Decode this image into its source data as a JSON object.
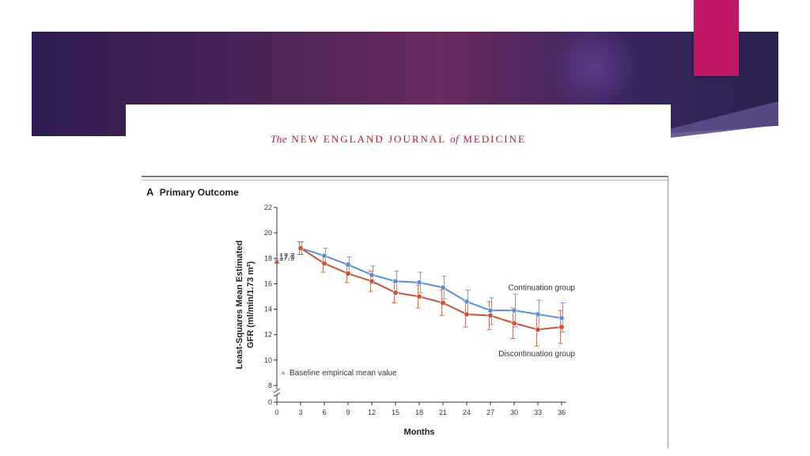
{
  "header": {
    "journal_prefix": "The",
    "journal_main": "NEW ENGLAND JOURNAL",
    "journal_of": "of",
    "journal_end": "MEDICINE"
  },
  "colors": {
    "accent": "#c21666",
    "banner": "#4a2458",
    "journal": "#b0202a",
    "continuation": "#5b8fd1",
    "discontinuation": "#c8533a"
  },
  "chart_data": {
    "type": "line",
    "panel_letter": "A",
    "title": "Primary Outcome",
    "xlabel": "Months",
    "ylabel_line1": "Least-Squares Mean Estimated",
    "ylabel_line2": "GFR (ml/min/1.73 m²)",
    "x": [
      3,
      6,
      9,
      12,
      15,
      18,
      21,
      24,
      27,
      30,
      33,
      36
    ],
    "xticks": [
      0,
      3,
      6,
      9,
      12,
      15,
      18,
      21,
      24,
      27,
      30,
      33,
      36
    ],
    "yticks": [
      0,
      8,
      10,
      12,
      14,
      16,
      18,
      20,
      22
    ],
    "ylim": [
      0,
      22
    ],
    "axis_break": true,
    "series": [
      {
        "name": "Continuation group",
        "color": "#5b8fd1",
        "values": [
          18.8,
          18.2,
          17.5,
          16.7,
          16.2,
          16.1,
          15.7,
          14.6,
          13.9,
          13.9,
          13.6,
          13.3
        ],
        "lower": [
          18.3,
          17.6,
          16.9,
          16.0,
          15.4,
          15.3,
          14.8,
          13.6,
          12.8,
          12.6,
          12.4,
          12.2
        ],
        "upper": [
          19.3,
          18.8,
          18.1,
          17.4,
          17.0,
          16.9,
          16.6,
          15.5,
          14.9,
          15.2,
          14.7,
          14.5
        ]
      },
      {
        "name": "Discontinuation group",
        "color": "#c8533a",
        "values": [
          18.8,
          17.6,
          16.8,
          16.2,
          15.3,
          15.0,
          14.5,
          13.6,
          13.5,
          12.9,
          12.4,
          12.6
        ],
        "lower": [
          18.3,
          16.9,
          16.1,
          15.4,
          14.5,
          14.1,
          13.5,
          12.6,
          12.4,
          11.7,
          11.1,
          11.3
        ],
        "upper": [
          19.3,
          18.3,
          17.5,
          17.0,
          16.1,
          15.9,
          15.5,
          14.6,
          14.6,
          14.1,
          13.7,
          13.9
        ]
      }
    ],
    "baseline": {
      "legend": "Baseline empirical mean value",
      "points": [
        {
          "label": "17.9",
          "x": 0,
          "y": 17.9
        },
        {
          "label": "17.7",
          "x": 0,
          "y": 17.7
        }
      ]
    }
  }
}
